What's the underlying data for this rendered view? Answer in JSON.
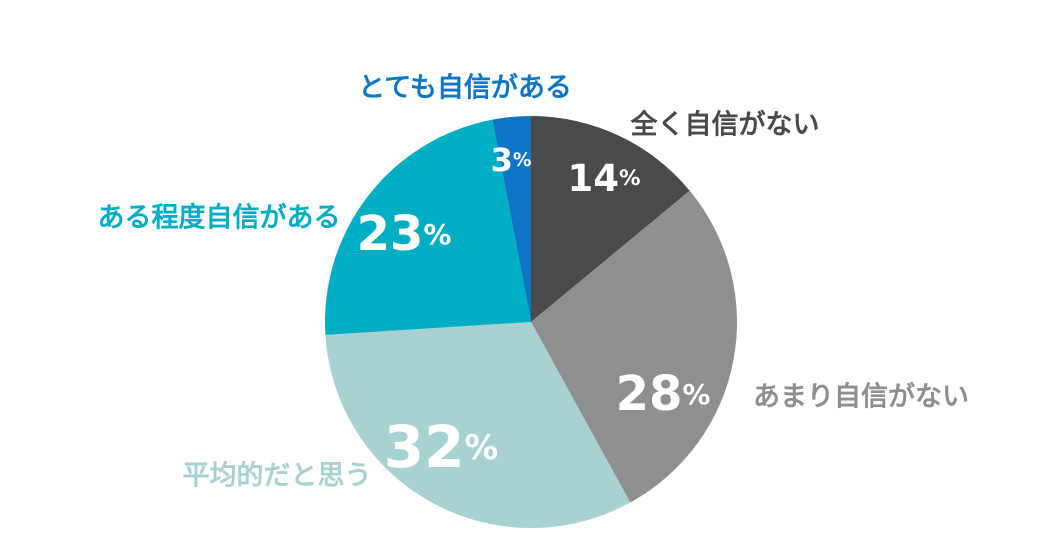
{
  "figure": {
    "background_color": "#FFFFFF"
  },
  "chart_data": {
    "type": "pie",
    "title": "",
    "start_angle_deg": 0,
    "direction": "clockwise",
    "legend": "none",
    "labels_position": "outside, colored to match slice",
    "value_label_color": "#FFFFFF",
    "value_suffix": "%",
    "slices": [
      {
        "label": "全く自信がない",
        "value": 14,
        "value_label": "14%",
        "color": "#4A4A4A"
      },
      {
        "label": "あまり自信がない",
        "value": 28,
        "value_label": "28%",
        "color": "#8F8F8F"
      },
      {
        "label": "平均的だと思う",
        "value": 32,
        "value_label": "32%",
        "color": "#A7D2D1"
      },
      {
        "label": "ある程度自信がある",
        "value": 23,
        "value_label": "23%",
        "color": "#00AEC4"
      },
      {
        "label": "とても自信がある",
        "value": 3,
        "value_label": "3%",
        "color": "#0E76C6"
      }
    ]
  }
}
